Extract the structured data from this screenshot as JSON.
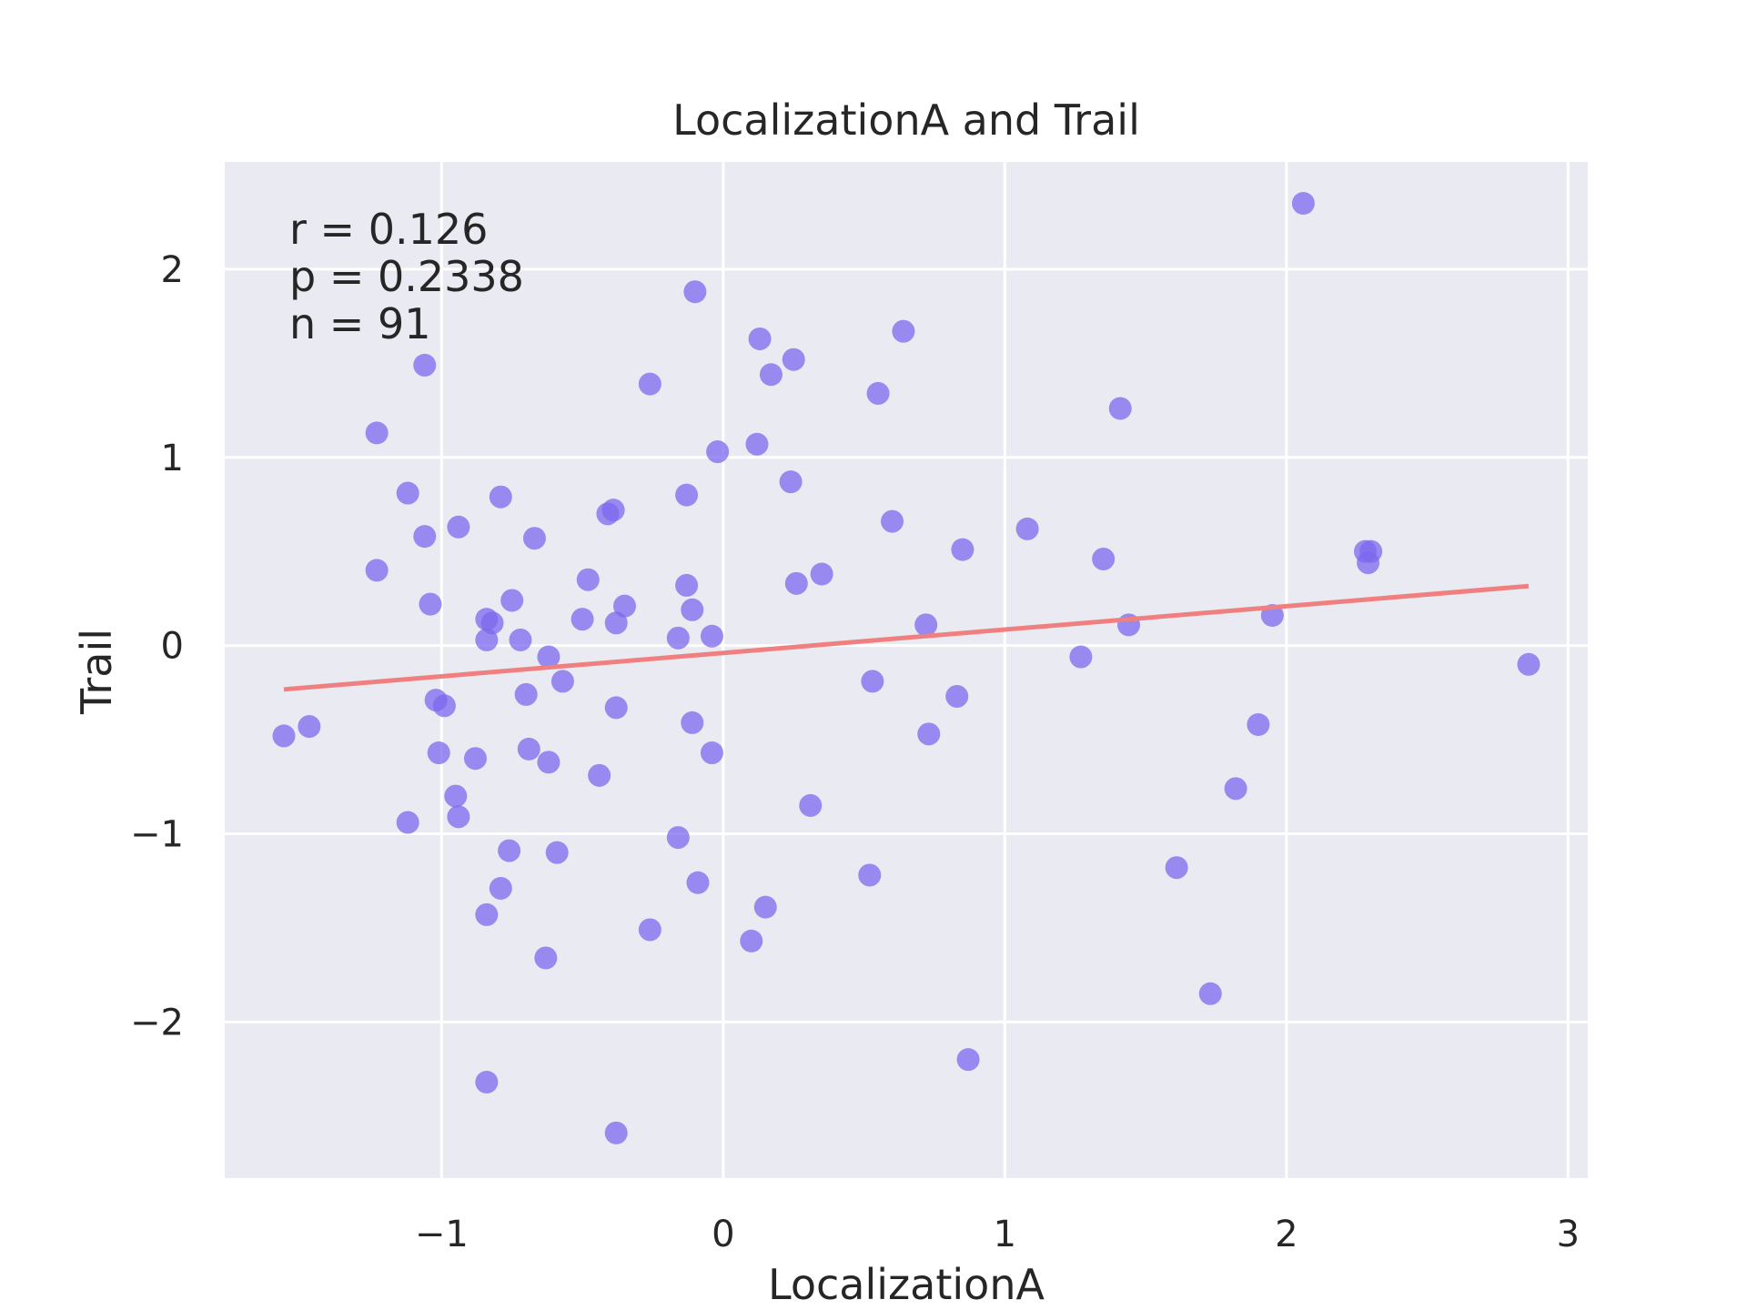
{
  "chart_data": {
    "type": "scatter",
    "title": "LocalizationA and Trail",
    "xlabel": "LocalizationA",
    "ylabel": "Trail",
    "xlim": [
      -1.77,
      3.07
    ],
    "ylim": [
      -2.83,
      2.57
    ],
    "xticks": [
      -1,
      0,
      1,
      2,
      3
    ],
    "yticks": [
      -2,
      -1,
      0,
      1,
      2
    ],
    "xtick_labels": [
      "−1",
      "0",
      "1",
      "2",
      "3"
    ],
    "ytick_labels": [
      "−2",
      "−1",
      "0",
      "1",
      "2"
    ],
    "grid": true,
    "colors": {
      "background": "#eaeaf2",
      "grid": "#ffffff",
      "points": "#7b68ee",
      "fit_line": "#f08080"
    },
    "annotation": [
      "r = 0.126",
      "p = 0.2338",
      "n = 91"
    ],
    "fit_line": {
      "x": [
        -1.56,
        2.86
      ],
      "y": [
        -0.233,
        0.316
      ]
    },
    "points": [
      {
        "x": -1.56,
        "y": -0.48
      },
      {
        "x": -1.47,
        "y": -0.43
      },
      {
        "x": -1.23,
        "y": 1.13
      },
      {
        "x": -1.23,
        "y": 0.4
      },
      {
        "x": -1.12,
        "y": 0.81
      },
      {
        "x": -1.12,
        "y": -0.94
      },
      {
        "x": -1.06,
        "y": 1.49
      },
      {
        "x": -1.06,
        "y": 0.58
      },
      {
        "x": -1.04,
        "y": 0.22
      },
      {
        "x": -1.02,
        "y": -0.29
      },
      {
        "x": -1.01,
        "y": -0.57
      },
      {
        "x": -0.99,
        "y": -0.32
      },
      {
        "x": -0.95,
        "y": -0.8
      },
      {
        "x": -0.94,
        "y": -0.91
      },
      {
        "x": -0.94,
        "y": 0.63
      },
      {
        "x": -0.88,
        "y": -0.6
      },
      {
        "x": -0.84,
        "y": 0.14
      },
      {
        "x": -0.84,
        "y": 0.03
      },
      {
        "x": -0.84,
        "y": -1.43
      },
      {
        "x": -0.84,
        "y": -2.32
      },
      {
        "x": -0.82,
        "y": 0.12
      },
      {
        "x": -0.79,
        "y": 0.79
      },
      {
        "x": -0.79,
        "y": -1.29
      },
      {
        "x": -0.76,
        "y": -1.09
      },
      {
        "x": -0.75,
        "y": 0.24
      },
      {
        "x": -0.72,
        "y": 0.03
      },
      {
        "x": -0.7,
        "y": -0.26
      },
      {
        "x": -0.69,
        "y": -0.55
      },
      {
        "x": -0.67,
        "y": 0.57
      },
      {
        "x": -0.62,
        "y": -0.06
      },
      {
        "x": -0.62,
        "y": -0.62
      },
      {
        "x": -0.63,
        "y": -1.66
      },
      {
        "x": -0.59,
        "y": -1.1
      },
      {
        "x": -0.57,
        "y": -0.19
      },
      {
        "x": -0.5,
        "y": 0.14
      },
      {
        "x": -0.48,
        "y": 0.35
      },
      {
        "x": -0.44,
        "y": -0.69
      },
      {
        "x": -0.41,
        "y": 0.7
      },
      {
        "x": -0.39,
        "y": 0.72
      },
      {
        "x": -0.38,
        "y": 0.12
      },
      {
        "x": -0.38,
        "y": -0.33
      },
      {
        "x": -0.38,
        "y": -2.59
      },
      {
        "x": -0.35,
        "y": 0.21
      },
      {
        "x": -0.26,
        "y": 1.39
      },
      {
        "x": -0.26,
        "y": -1.51
      },
      {
        "x": -0.16,
        "y": 0.04
      },
      {
        "x": -0.16,
        "y": -1.02
      },
      {
        "x": -0.13,
        "y": 0.8
      },
      {
        "x": -0.13,
        "y": 0.32
      },
      {
        "x": -0.11,
        "y": 0.19
      },
      {
        "x": -0.11,
        "y": -0.41
      },
      {
        "x": -0.1,
        "y": 1.88
      },
      {
        "x": -0.09,
        "y": -1.26
      },
      {
        "x": -0.04,
        "y": 0.05
      },
      {
        "x": -0.04,
        "y": -0.57
      },
      {
        "x": -0.02,
        "y": 1.03
      },
      {
        "x": 0.1,
        "y": -1.57
      },
      {
        "x": 0.12,
        "y": 1.07
      },
      {
        "x": 0.13,
        "y": 1.63
      },
      {
        "x": 0.15,
        "y": -1.39
      },
      {
        "x": 0.17,
        "y": 1.44
      },
      {
        "x": 0.24,
        "y": 0.87
      },
      {
        "x": 0.25,
        "y": 1.52
      },
      {
        "x": 0.26,
        "y": 0.33
      },
      {
        "x": 0.31,
        "y": -0.85
      },
      {
        "x": 0.35,
        "y": 0.38
      },
      {
        "x": 0.52,
        "y": -1.22
      },
      {
        "x": 0.53,
        "y": -0.19
      },
      {
        "x": 0.55,
        "y": 1.34
      },
      {
        "x": 0.6,
        "y": 0.66
      },
      {
        "x": 0.64,
        "y": 1.67
      },
      {
        "x": 0.72,
        "y": 0.11
      },
      {
        "x": 0.73,
        "y": -0.47
      },
      {
        "x": 0.83,
        "y": -0.27
      },
      {
        "x": 0.85,
        "y": 0.51
      },
      {
        "x": 0.87,
        "y": -2.2
      },
      {
        "x": 1.08,
        "y": 0.62
      },
      {
        "x": 1.27,
        "y": -0.06
      },
      {
        "x": 1.35,
        "y": 0.46
      },
      {
        "x": 1.41,
        "y": 1.26
      },
      {
        "x": 1.44,
        "y": 0.11
      },
      {
        "x": 1.61,
        "y": -1.18
      },
      {
        "x": 1.73,
        "y": -1.85
      },
      {
        "x": 1.82,
        "y": -0.76
      },
      {
        "x": 1.9,
        "y": -0.42
      },
      {
        "x": 1.95,
        "y": 0.16
      },
      {
        "x": 2.06,
        "y": 2.35
      },
      {
        "x": 2.28,
        "y": 0.5
      },
      {
        "x": 2.29,
        "y": 0.44
      },
      {
        "x": 2.3,
        "y": 0.5
      },
      {
        "x": 2.86,
        "y": -0.1
      }
    ]
  }
}
